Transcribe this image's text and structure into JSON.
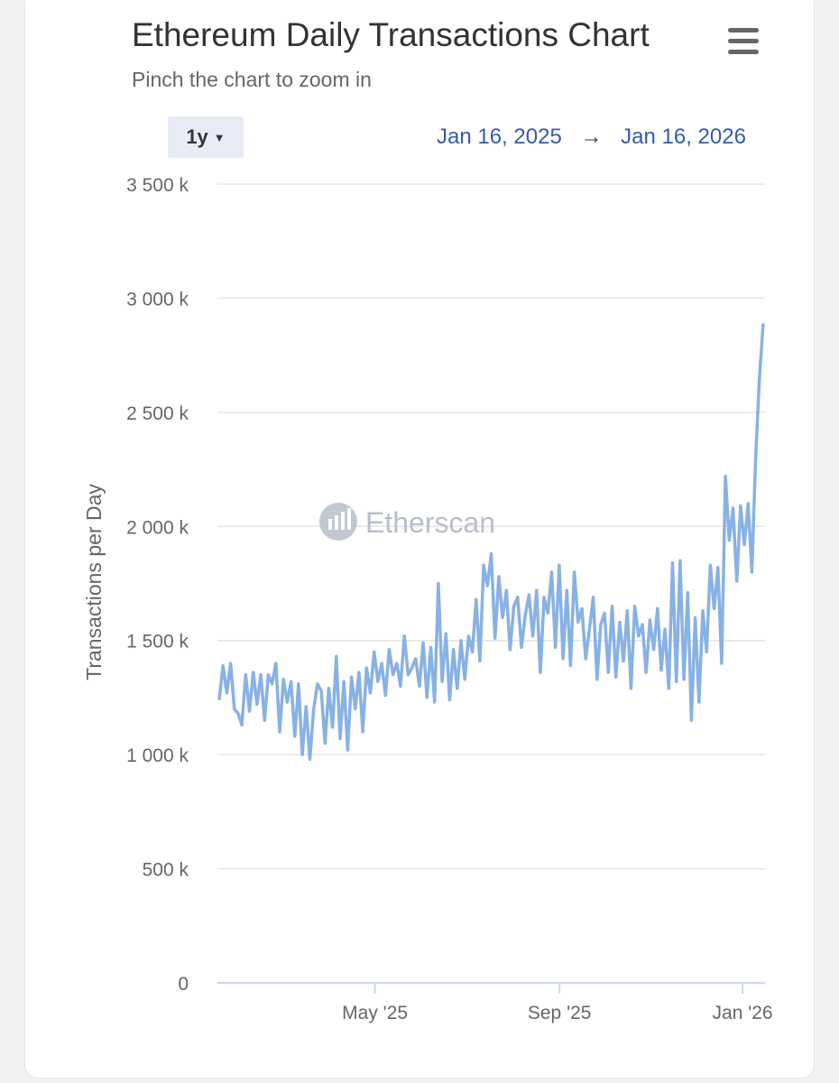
{
  "header": {
    "title": "Ethereum Daily Transactions Chart",
    "subtitle": "Pinch the chart to zoom in",
    "menu_icon": "hamburger-menu-icon"
  },
  "range": {
    "selected": "1y",
    "from": "Jan 16, 2025",
    "arrow": "→",
    "to": "Jan 16, 2026"
  },
  "watermark": "Etherscan",
  "colors": {
    "line": "#88b1e4",
    "grid": "#e6e6e6",
    "axis": "#ccd6eb",
    "link": "#335cad"
  },
  "chart_data": {
    "type": "line",
    "title": "Ethereum Daily Transactions Chart",
    "ylabel": "Transactions per Day",
    "xlabel": "",
    "ylim": [
      0,
      3500000
    ],
    "yticks": [
      0,
      500000,
      1000000,
      1500000,
      2000000,
      2500000,
      3000000,
      3500000
    ],
    "ytick_labels": [
      "0",
      "500 k",
      "1 000 k",
      "1 500 k",
      "2 000 k",
      "2 500 k",
      "3 000 k",
      "3 500 k"
    ],
    "x_range": [
      "2025-01-16",
      "2026-01-16"
    ],
    "xticks": [
      {
        "label": "May '25",
        "date": "2025-05-01"
      },
      {
        "label": "Sep '25",
        "date": "2025-09-01"
      },
      {
        "label": "Jan '26",
        "date": "2026-01-01"
      }
    ],
    "series": [
      {
        "name": "Transactions per Day",
        "sample_interval_days": 3,
        "values": [
          1240000,
          1390000,
          1270000,
          1400000,
          1200000,
          1180000,
          1130000,
          1350000,
          1190000,
          1360000,
          1220000,
          1350000,
          1150000,
          1350000,
          1310000,
          1400000,
          1100000,
          1330000,
          1230000,
          1320000,
          1080000,
          1310000,
          1000000,
          1210000,
          980000,
          1200000,
          1310000,
          1280000,
          1050000,
          1290000,
          1120000,
          1430000,
          1070000,
          1320000,
          1020000,
          1340000,
          1200000,
          1360000,
          1100000,
          1380000,
          1270000,
          1450000,
          1320000,
          1400000,
          1260000,
          1460000,
          1350000,
          1400000,
          1300000,
          1520000,
          1350000,
          1380000,
          1420000,
          1300000,
          1490000,
          1250000,
          1470000,
          1230000,
          1750000,
          1320000,
          1530000,
          1240000,
          1460000,
          1290000,
          1500000,
          1330000,
          1520000,
          1450000,
          1680000,
          1410000,
          1830000,
          1740000,
          1880000,
          1510000,
          1780000,
          1600000,
          1720000,
          1460000,
          1650000,
          1690000,
          1470000,
          1610000,
          1700000,
          1520000,
          1720000,
          1360000,
          1690000,
          1620000,
          1800000,
          1470000,
          1830000,
          1420000,
          1720000,
          1390000,
          1800000,
          1580000,
          1640000,
          1420000,
          1550000,
          1690000,
          1330000,
          1570000,
          1620000,
          1360000,
          1650000,
          1340000,
          1580000,
          1410000,
          1630000,
          1290000,
          1650000,
          1520000,
          1570000,
          1360000,
          1590000,
          1460000,
          1640000,
          1370000,
          1550000,
          1290000,
          1840000,
          1320000,
          1850000,
          1330000,
          1710000,
          1150000,
          1600000,
          1230000,
          1630000,
          1450000,
          1830000,
          1640000,
          1820000,
          1400000,
          2220000,
          1940000,
          2080000,
          1760000,
          2090000,
          1920000,
          2100000,
          1800000,
          2300000,
          2650000,
          2890000
        ]
      }
    ]
  }
}
